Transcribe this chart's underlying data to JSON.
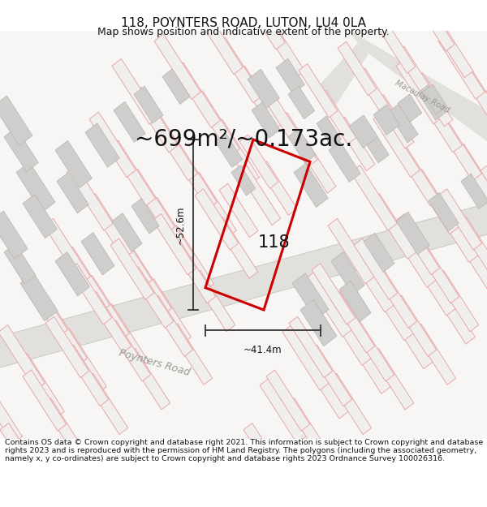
{
  "title": "118, POYNTERS ROAD, LUTON, LU4 0LA",
  "subtitle": "Map shows position and indicative extent of the property.",
  "area_text": "~699m²/~0.173ac.",
  "label_118": "118",
  "dim_vertical": "~52.6m",
  "dim_horizontal": "~41.4m",
  "road_label": "Poynters Road",
  "road_label2": "Macaulay Road",
  "footer": "Contains OS data © Crown copyright and database right 2021. This information is subject to Crown copyright and database rights 2023 and is reproduced with the permission of HM Land Registry. The polygons (including the associated geometry, namely x, y co-ordinates) are subject to Crown copyright and database rights 2023 Ordnance Survey 100026316.",
  "map_bg": "#f7f6f4",
  "road_fill": "#e2e0dc",
  "road_edge": "#c8c4be",
  "red_plot_color": "#cc0000",
  "dim_line_color": "#333333",
  "bldg_fill_gray": "#d0cecc",
  "bldg_edge_gray": "#b8b4b0",
  "plot_fill": "#f0efed",
  "plot_edge_pink": "#e8a8a8",
  "title_fontsize": 11,
  "subtitle_fontsize": 9,
  "area_fontsize": 20,
  "footer_fontsize": 6.8,
  "fig_width": 6.0,
  "fig_height": 6.25,
  "dpi": 100
}
